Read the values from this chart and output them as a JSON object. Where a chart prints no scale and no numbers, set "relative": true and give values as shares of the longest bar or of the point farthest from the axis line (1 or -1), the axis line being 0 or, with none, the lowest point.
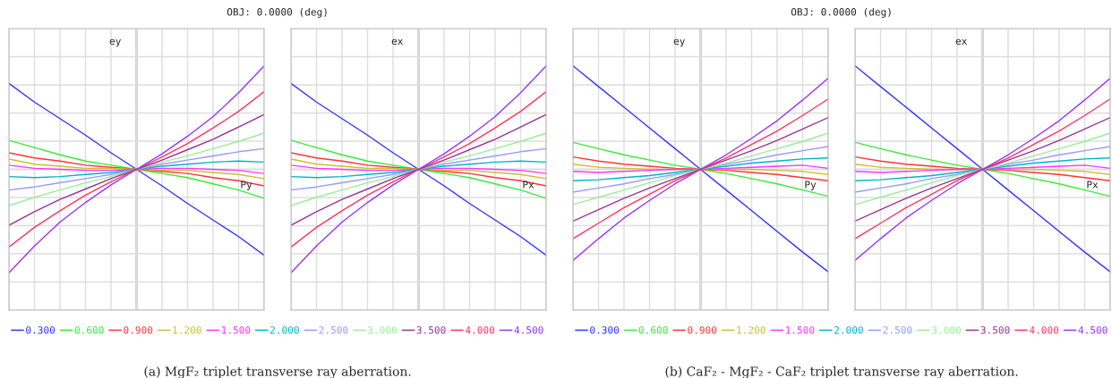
{
  "chart_data": [
    {
      "type": "line",
      "relative": true,
      "title": "OBJ: 0.0000 (deg)",
      "ylabel": "ey",
      "xlabel": "Py",
      "grid": true,
      "tick_labels": false,
      "legend": "bottom",
      "annotations": [
        "(a) MgF₂ triplet transverse ray aberration."
      ],
      "categories": [
        null,
        null,
        null,
        null,
        null,
        null,
        null,
        null,
        null,
        null,
        null
      ],
      "series": [
        {
          "name": "0.300",
          "color": "#3333ff",
          "values": [
            0.83,
            0.65,
            0.49,
            0.33,
            0.16,
            0,
            -0.16,
            -0.33,
            -0.49,
            -0.65,
            -0.83
          ]
        },
        {
          "name": "0.600",
          "color": "#33ee33",
          "values": [
            0.28,
            0.21,
            0.14,
            0.08,
            0.04,
            0,
            -0.04,
            -0.08,
            -0.14,
            -0.2,
            -0.28
          ]
        },
        {
          "name": "0.900",
          "color": "#ff3333",
          "values": [
            0.16,
            0.11,
            0.08,
            0.04,
            0.02,
            0,
            -0.02,
            -0.04,
            -0.08,
            -0.11,
            -0.16
          ]
        },
        {
          "name": "1.200",
          "color": "#c8c030",
          "values": [
            0.1,
            0.05,
            0.03,
            0.01,
            0.01,
            0,
            -0.01,
            -0.01,
            -0.03,
            -0.05,
            -0.09
          ]
        },
        {
          "name": "1.500",
          "color": "#ff33ff",
          "values": [
            0.04,
            0.01,
            0,
            -0.01,
            -0.01,
            0,
            0.01,
            0.01,
            0,
            -0.01,
            -0.04
          ]
        },
        {
          "name": "2.000",
          "color": "#00b4c8",
          "values": [
            -0.07,
            -0.08,
            -0.07,
            -0.05,
            -0.03,
            0,
            0.03,
            0.05,
            0.07,
            0.08,
            0.07
          ]
        },
        {
          "name": "2.500",
          "color": "#9999ff",
          "values": [
            -0.2,
            -0.17,
            -0.13,
            -0.09,
            -0.05,
            0,
            0.05,
            0.09,
            0.13,
            0.17,
            0.2
          ]
        },
        {
          "name": "3.000",
          "color": "#99ee99",
          "values": [
            -0.35,
            -0.27,
            -0.2,
            -0.13,
            -0.07,
            0,
            0.07,
            0.13,
            0.2,
            0.27,
            0.35
          ]
        },
        {
          "name": "3.500",
          "color": "#993399",
          "values": [
            -0.54,
            -0.41,
            -0.29,
            -0.19,
            -0.09,
            0,
            0.09,
            0.19,
            0.29,
            0.41,
            0.53
          ]
        },
        {
          "name": "4.000",
          "color": "#ff3366",
          "values": [
            -0.75,
            -0.56,
            -0.4,
            -0.25,
            -0.12,
            0,
            0.12,
            0.25,
            0.4,
            0.56,
            0.75
          ]
        },
        {
          "name": "4.500",
          "color": "#9933ff",
          "values": [
            -1,
            -0.74,
            -0.51,
            -0.32,
            -0.15,
            0,
            0.15,
            0.32,
            0.51,
            0.74,
            1
          ]
        }
      ]
    },
    {
      "type": "line",
      "relative": true,
      "ylabel": "ex",
      "xlabel": "Px",
      "grid": true,
      "tick_labels": false,
      "categories": [
        null,
        null,
        null,
        null,
        null,
        null,
        null,
        null,
        null,
        null,
        null
      ],
      "series": [
        {
          "color": "#3333ff",
          "values": [
            0.83,
            0.65,
            0.49,
            0.33,
            0.16,
            0,
            -0.16,
            -0.33,
            -0.49,
            -0.65,
            -0.83
          ]
        },
        {
          "color": "#33ee33",
          "values": [
            0.28,
            0.21,
            0.14,
            0.08,
            0.04,
            0,
            -0.04,
            -0.08,
            -0.14,
            -0.2,
            -0.28
          ]
        },
        {
          "color": "#ff3333",
          "values": [
            0.16,
            0.11,
            0.08,
            0.04,
            0.02,
            0,
            -0.02,
            -0.04,
            -0.08,
            -0.11,
            -0.16
          ]
        },
        {
          "color": "#c8c030",
          "values": [
            0.1,
            0.05,
            0.03,
            0.01,
            0.01,
            0,
            -0.01,
            -0.01,
            -0.03,
            -0.05,
            -0.09
          ]
        },
        {
          "color": "#ff33ff",
          "values": [
            0.04,
            0.01,
            0,
            -0.01,
            -0.01,
            0,
            0.01,
            0.01,
            0,
            -0.01,
            -0.04
          ]
        },
        {
          "color": "#00b4c8",
          "values": [
            -0.07,
            -0.08,
            -0.07,
            -0.05,
            -0.03,
            0,
            0.03,
            0.05,
            0.07,
            0.08,
            0.07
          ]
        },
        {
          "color": "#9999ff",
          "values": [
            -0.2,
            -0.17,
            -0.13,
            -0.09,
            -0.05,
            0,
            0.05,
            0.09,
            0.13,
            0.17,
            0.2
          ]
        },
        {
          "color": "#99ee99",
          "values": [
            -0.35,
            -0.27,
            -0.2,
            -0.13,
            -0.07,
            0,
            0.07,
            0.13,
            0.2,
            0.27,
            0.35
          ]
        },
        {
          "color": "#993399",
          "values": [
            -0.54,
            -0.41,
            -0.29,
            -0.19,
            -0.09,
            0,
            0.09,
            0.19,
            0.29,
            0.41,
            0.53
          ]
        },
        {
          "color": "#ff3366",
          "values": [
            -0.75,
            -0.56,
            -0.4,
            -0.25,
            -0.12,
            0,
            0.12,
            0.25,
            0.4,
            0.56,
            0.75
          ]
        },
        {
          "color": "#9933ff",
          "values": [
            -1,
            -0.74,
            -0.51,
            -0.32,
            -0.15,
            0,
            0.15,
            0.32,
            0.51,
            0.74,
            1
          ]
        }
      ]
    },
    {
      "type": "line",
      "relative": true,
      "title": "OBJ: 0.0000 (deg)",
      "ylabel": "ey",
      "xlabel": "Py",
      "grid": true,
      "tick_labels": false,
      "legend": "bottom",
      "annotations": [
        "(b) CaF₂ - MgF₂ - CaF₂ triplet transverse ray aberration."
      ],
      "categories": [
        null,
        null,
        null,
        null,
        null,
        null,
        null,
        null,
        null,
        null,
        null
      ],
      "series": [
        {
          "name": "0.300",
          "color": "#3333ff",
          "values": [
            1,
            0.8,
            0.6,
            0.4,
            0.2,
            0,
            -0.2,
            -0.4,
            -0.6,
            -0.8,
            -0.99
          ]
        },
        {
          "name": "0.600",
          "color": "#33ee33",
          "values": [
            0.26,
            0.2,
            0.14,
            0.09,
            0.04,
            0,
            -0.04,
            -0.09,
            -0.14,
            -0.2,
            -0.26
          ]
        },
        {
          "name": "0.900",
          "color": "#ff3333",
          "values": [
            0.12,
            0.08,
            0.05,
            0.03,
            0.01,
            0,
            -0.01,
            -0.03,
            -0.05,
            -0.08,
            -0.11
          ]
        },
        {
          "name": "1.200",
          "color": "#c8c030",
          "values": [
            0.05,
            0.02,
            0.01,
            0,
            0,
            0,
            0,
            0,
            -0.01,
            -0.02,
            -0.05
          ]
        },
        {
          "name": "1.500",
          "color": "#ff33ff",
          "values": [
            -0.02,
            -0.03,
            -0.02,
            -0.01,
            0,
            0,
            0.01,
            0.02,
            0.03,
            0.04,
            0.01
          ]
        },
        {
          "name": "2.000",
          "color": "#00b4c8",
          "values": [
            -0.11,
            -0.1,
            -0.08,
            -0.06,
            -0.03,
            0,
            0.03,
            0.06,
            0.08,
            0.1,
            0.11
          ]
        },
        {
          "name": "2.500",
          "color": "#9999ff",
          "values": [
            -0.22,
            -0.18,
            -0.14,
            -0.09,
            -0.05,
            0,
            0.05,
            0.09,
            0.14,
            0.18,
            0.22
          ]
        },
        {
          "name": "3.000",
          "color": "#99ee99",
          "values": [
            -0.34,
            -0.27,
            -0.2,
            -0.13,
            -0.06,
            0,
            0.06,
            0.13,
            0.2,
            0.27,
            0.35
          ]
        },
        {
          "name": "3.500",
          "color": "#993399",
          "values": [
            -0.5,
            -0.39,
            -0.28,
            -0.18,
            -0.09,
            0,
            0.09,
            0.18,
            0.28,
            0.39,
            0.5
          ]
        },
        {
          "name": "4.000",
          "color": "#ff3366",
          "values": [
            -0.67,
            -0.52,
            -0.37,
            -0.24,
            -0.11,
            0,
            0.11,
            0.24,
            0.37,
            0.52,
            0.68
          ]
        },
        {
          "name": "4.500",
          "color": "#9933ff",
          "values": [
            -0.88,
            -0.67,
            -0.47,
            -0.3,
            -0.14,
            0,
            0.14,
            0.3,
            0.47,
            0.67,
            0.88
          ]
        }
      ]
    },
    {
      "type": "line",
      "relative": true,
      "ylabel": "ex",
      "xlabel": "Px",
      "grid": true,
      "tick_labels": false,
      "categories": [
        null,
        null,
        null,
        null,
        null,
        null,
        null,
        null,
        null,
        null,
        null
      ],
      "series": [
        {
          "color": "#3333ff",
          "values": [
            1,
            0.8,
            0.6,
            0.4,
            0.2,
            0,
            -0.2,
            -0.4,
            -0.6,
            -0.8,
            -0.99
          ]
        },
        {
          "color": "#33ee33",
          "values": [
            0.26,
            0.2,
            0.14,
            0.09,
            0.04,
            0,
            -0.04,
            -0.09,
            -0.14,
            -0.2,
            -0.26
          ]
        },
        {
          "color": "#ff3333",
          "values": [
            0.12,
            0.08,
            0.05,
            0.03,
            0.01,
            0,
            -0.01,
            -0.03,
            -0.05,
            -0.08,
            -0.11
          ]
        },
        {
          "color": "#c8c030",
          "values": [
            0.05,
            0.02,
            0.01,
            0,
            0,
            0,
            0,
            0,
            -0.01,
            -0.02,
            -0.05
          ]
        },
        {
          "color": "#ff33ff",
          "values": [
            -0.02,
            -0.03,
            -0.02,
            -0.01,
            0,
            0,
            0.01,
            0.02,
            0.03,
            0.04,
            0.01
          ]
        },
        {
          "color": "#00b4c8",
          "values": [
            -0.11,
            -0.1,
            -0.08,
            -0.06,
            -0.03,
            0,
            0.03,
            0.06,
            0.08,
            0.1,
            0.11
          ]
        },
        {
          "color": "#9999ff",
          "values": [
            -0.22,
            -0.18,
            -0.14,
            -0.09,
            -0.05,
            0,
            0.05,
            0.09,
            0.14,
            0.18,
            0.22
          ]
        },
        {
          "color": "#99ee99",
          "values": [
            -0.34,
            -0.27,
            -0.2,
            -0.13,
            -0.06,
            0,
            0.06,
            0.13,
            0.2,
            0.27,
            0.35
          ]
        },
        {
          "color": "#993399",
          "values": [
            -0.5,
            -0.39,
            -0.28,
            -0.18,
            -0.09,
            0,
            0.09,
            0.18,
            0.28,
            0.39,
            0.5
          ]
        },
        {
          "color": "#ff3366",
          "values": [
            -0.67,
            -0.52,
            -0.37,
            -0.24,
            -0.11,
            0,
            0.11,
            0.24,
            0.37,
            0.52,
            0.68
          ]
        },
        {
          "color": "#9933ff",
          "values": [
            -0.88,
            -0.67,
            -0.47,
            -0.3,
            -0.14,
            0,
            0.14,
            0.3,
            0.47,
            0.67,
            0.88
          ]
        }
      ]
    }
  ]
}
